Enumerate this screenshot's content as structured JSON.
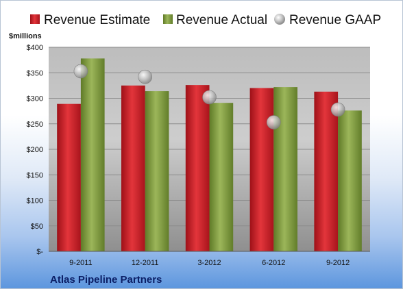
{
  "chart_data": {
    "type": "bar",
    "categories": [
      "9-2011",
      "12-2011",
      "3-2012",
      "6-2012",
      "9-2012"
    ],
    "series": [
      {
        "name": "Revenue Estimate",
        "kind": "bar",
        "color": "#cc1f27",
        "values": [
          289,
          325,
          326,
          320,
          313
        ]
      },
      {
        "name": "Revenue Actual",
        "kind": "bar",
        "color": "#7f9a3c",
        "values": [
          378,
          314,
          291,
          322,
          276
        ]
      },
      {
        "name": "Revenue GAAP",
        "kind": "marker",
        "color": "#b9b9b9",
        "values": [
          353,
          342,
          302,
          253,
          278
        ]
      }
    ],
    "ylabel": "$millions",
    "ylim": [
      0,
      400
    ],
    "yticks": [
      0,
      50,
      100,
      150,
      200,
      250,
      300,
      350,
      400
    ],
    "ytick_labels": [
      "$-",
      "$50",
      "$100",
      "$150",
      "$200",
      "$250",
      "$300",
      "$350",
      "$400"
    ],
    "grid": true,
    "legend_position": "top",
    "footer": "Atlas Pipeline Partners"
  }
}
